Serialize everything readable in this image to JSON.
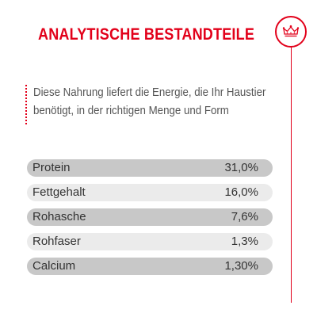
{
  "header": {
    "title": "ANALYTISCHE BESTANDTEILE",
    "logo_icon": "crown-icon",
    "accent_color": "#e2001a"
  },
  "intro": {
    "line1": "Diese Nahrung liefert die Energie, die Ihr Haustier",
    "line2": "benötigt, in der richtigen Menge und Form"
  },
  "table": {
    "rows": [
      {
        "label": "Protein",
        "value": "31,0%"
      },
      {
        "label": "Fettgehalt",
        "value": "16,0%"
      },
      {
        "label": "Rohasche",
        "value": "7,6%"
      },
      {
        "label": "Rohfaser",
        "value": "1,3%"
      },
      {
        "label": "Calcium",
        "value": "1,30%"
      }
    ]
  }
}
